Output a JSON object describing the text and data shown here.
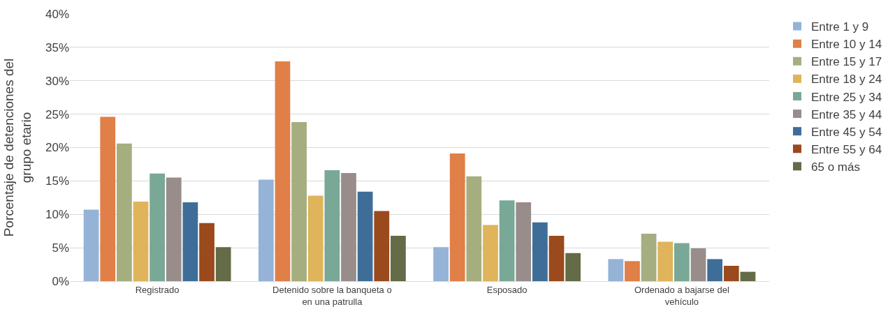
{
  "chart_data": {
    "type": "bar",
    "ylabel": "Porcentaje de detenciones del grupo etario",
    "categories": [
      "Registrado",
      "Detenido sobre la banqueta o en una patrulla",
      "Esposado",
      "Ordenado a bajarse del vehículo"
    ],
    "series": [
      {
        "name": "Entre 1 y 9",
        "color": "#95b3d7",
        "values": [
          10.7,
          15.2,
          5.1,
          3.3
        ]
      },
      {
        "name": "Entre 10 y 14",
        "color": "#e07f47",
        "values": [
          24.6,
          32.9,
          19.1,
          3.0
        ]
      },
      {
        "name": "Entre 15 y 17",
        "color": "#a5ae7f",
        "values": [
          20.6,
          23.8,
          15.7,
          7.1
        ]
      },
      {
        "name": "Entre 18 y 24",
        "color": "#dfb45a",
        "values": [
          11.9,
          12.8,
          8.4,
          5.9
        ]
      },
      {
        "name": "Entre 25 y 34",
        "color": "#79a896",
        "values": [
          16.1,
          16.6,
          12.1,
          5.7
        ]
      },
      {
        "name": "Entre 35 y 44",
        "color": "#988d8b",
        "values": [
          15.5,
          16.2,
          11.8,
          4.9
        ]
      },
      {
        "name": "Entre 45 y 54",
        "color": "#3e6e98",
        "values": [
          11.8,
          13.4,
          8.8,
          3.3
        ]
      },
      {
        "name": "Entre 55 y 64",
        "color": "#9a4a1d",
        "values": [
          8.7,
          10.5,
          6.8,
          2.3
        ]
      },
      {
        "name": "65 o más",
        "color": "#636b47",
        "values": [
          5.1,
          6.8,
          4.2,
          1.4
        ]
      }
    ],
    "ylim": [
      0,
      40
    ],
    "yticks": [
      {
        "value": 0,
        "label": "0%"
      },
      {
        "value": 5,
        "label": "5%"
      },
      {
        "value": 10,
        "label": "10%"
      },
      {
        "value": 15,
        "label": "15%"
      },
      {
        "value": 20,
        "label": "20%"
      },
      {
        "value": 25,
        "label": "25%"
      },
      {
        "value": 30,
        "label": "30%"
      },
      {
        "value": 35,
        "label": "35%"
      },
      {
        "value": 40,
        "label": "40%"
      }
    ],
    "grid": "y",
    "legend": "right"
  }
}
